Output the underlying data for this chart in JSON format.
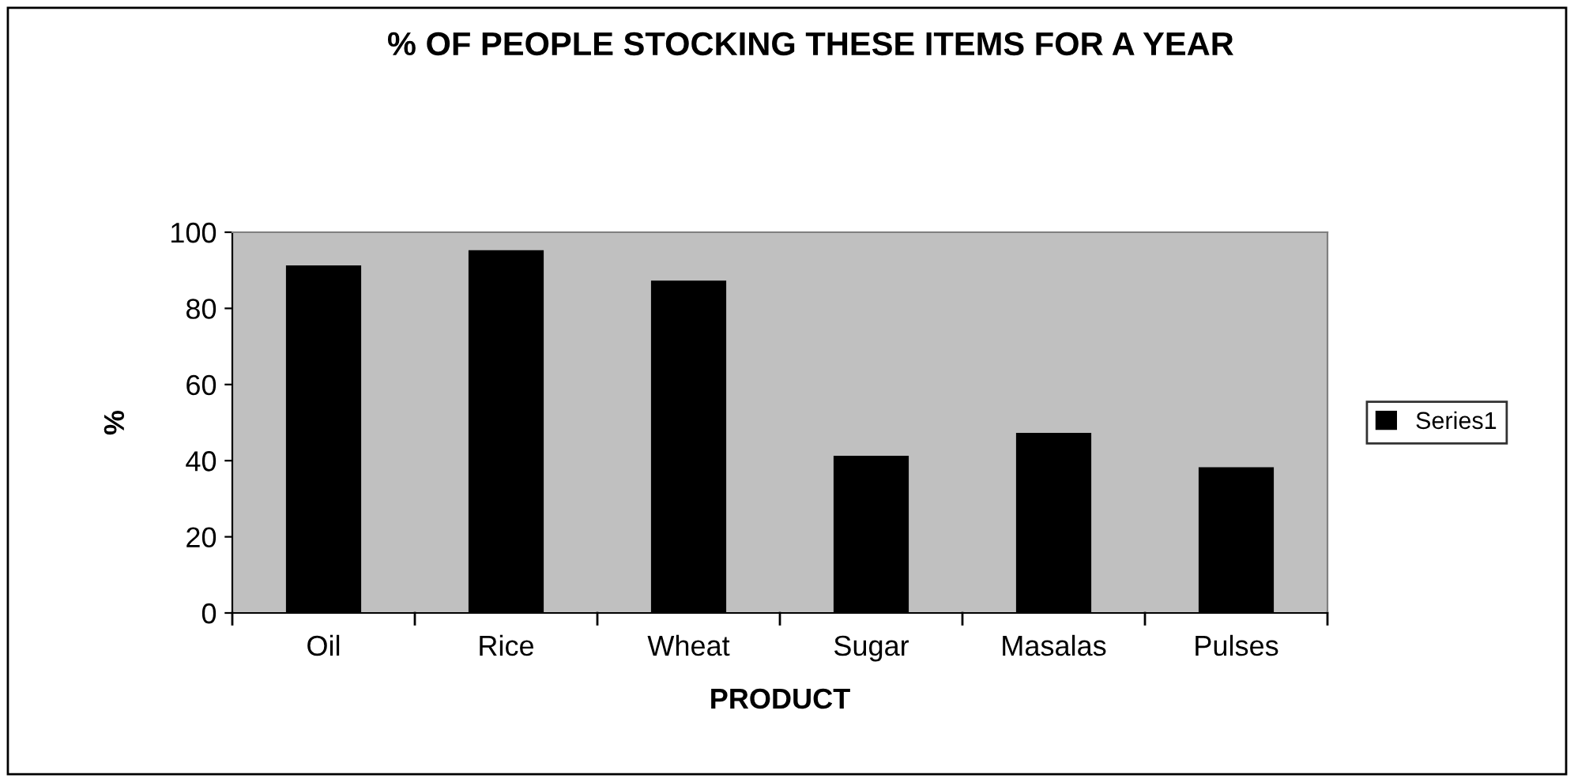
{
  "chart_data": {
    "type": "bar",
    "title": "% OF PEOPLE STOCKING THESE ITEMS FOR A YEAR",
    "xlabel": "PRODUCT",
    "ylabel": "%",
    "categories": [
      "Oil",
      "Rice",
      "Wheat",
      "Sugar",
      "Masalas",
      "Pulses"
    ],
    "series": [
      {
        "name": "Series1",
        "color": "#000000",
        "values": [
          91,
          95,
          87,
          41,
          47,
          38
        ]
      }
    ],
    "ylim": [
      0,
      100
    ],
    "yticks": [
      0,
      20,
      40,
      60,
      80,
      100
    ],
    "grid": false,
    "legend": "right"
  }
}
